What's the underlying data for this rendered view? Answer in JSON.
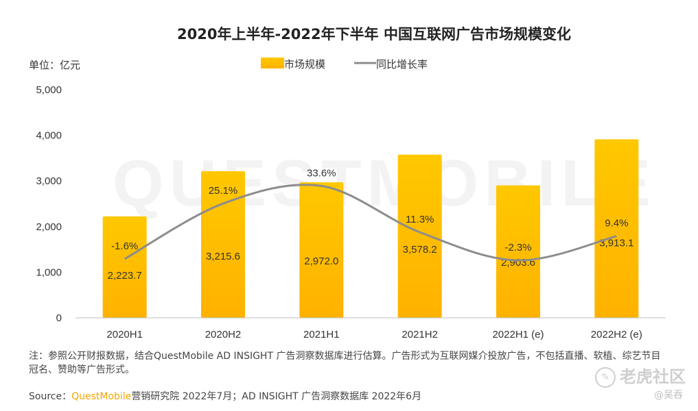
{
  "chart_data": {
    "type": "bar",
    "title": "2020年上半年-2022年下半年 中国互联网广告市场规模变化",
    "unit_label": "单位：亿元",
    "categories": [
      "2020H1",
      "2020H2",
      "2021H1",
      "2021H2",
      "2022H1 (e)",
      "2022H2 (e)"
    ],
    "series": [
      {
        "name": "市场规模",
        "type": "bar",
        "values": [
          2223.7,
          3215.6,
          2972.0,
          3578.2,
          2903.6,
          3913.1
        ],
        "labels": [
          "2,223.7",
          "3,215.6",
          "2,972.0",
          "3,578.2",
          "2,903.6",
          "3,913.1"
        ]
      },
      {
        "name": "同比增长率",
        "type": "line",
        "values": [
          -1.6,
          25.1,
          33.6,
          11.3,
          -2.3,
          9.4
        ],
        "labels": [
          "-1.6%",
          "25.1%",
          "33.6%",
          "11.3%",
          "-2.3%",
          "9.4%"
        ]
      }
    ],
    "ylim": [
      0,
      5000
    ],
    "yticks": [
      0,
      1000,
      2000,
      3000,
      4000,
      5000
    ],
    "ytick_labels": [
      "0",
      "1,000",
      "2,000",
      "3,000",
      "4,000",
      "5,000"
    ],
    "legend_position": "top-center",
    "grid": false,
    "colors": {
      "bar_top": "#FFC400",
      "bar_bottom": "#FFB000",
      "line": "#8C8C8C"
    }
  },
  "note": "注：参照公开财报数据，结合QuestMobile AD INSIGHT 广告洞察数据库进行估算。广告形式为互联网媒介投放广告，不包括直播、软植、综艺节目冠名、赞助等广告形式。",
  "source": {
    "prefix": "Source：",
    "brand": "QuestMobile",
    "text": "营销研究院 2022年7月；AD INSIGHT 广告洞察数据库 2022年6月"
  },
  "watermark": {
    "background": "QUESTMOBILE",
    "site": "老虎社区",
    "user": "@吴吞"
  }
}
